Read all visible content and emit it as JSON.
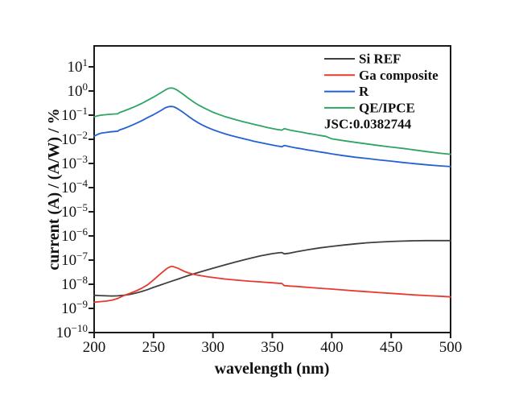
{
  "figure": {
    "background": "#ffffff",
    "frame_color": "#1a1a1a",
    "text_color": "#111111"
  },
  "chart_data": {
    "type": "line",
    "title": "",
    "xlabel": "wavelength (nm)",
    "ylabel": "current (A) / (A/W) / %",
    "x_scale": "linear",
    "y_scale": "log",
    "xlim": [
      200,
      500
    ],
    "ylim": [
      1e-10,
      73.6
    ],
    "x_ticks": [
      200,
      250,
      300,
      350,
      400,
      450,
      500
    ],
    "y_tick_exponents": [
      1,
      0,
      -1,
      -2,
      -3,
      -4,
      -5,
      -6,
      -7,
      -8,
      -9,
      -10
    ],
    "grid": false,
    "legend_position": "inside-top-right",
    "annotation": "JSC:0.0382744",
    "series": [
      {
        "name": "Si REF",
        "color": "#3f3f3f",
        "points": [
          [
            200,
            3.5e-09
          ],
          [
            205,
            3.4e-09
          ],
          [
            210,
            3.3e-09
          ],
          [
            215,
            3.25e-09
          ],
          [
            220,
            3.3e-09
          ],
          [
            225,
            3.5e-09
          ],
          [
            230,
            3.8e-09
          ],
          [
            235,
            4.3e-09
          ],
          [
            240,
            5e-09
          ],
          [
            245,
            6e-09
          ],
          [
            250,
            7.4e-09
          ],
          [
            255,
            9e-09
          ],
          [
            260,
            1.1e-08
          ],
          [
            265,
            1.33e-08
          ],
          [
            270,
            1.6e-08
          ],
          [
            275,
            1.95e-08
          ],
          [
            280,
            2.35e-08
          ],
          [
            285,
            2.8e-08
          ],
          [
            290,
            3.3e-08
          ],
          [
            295,
            3.9e-08
          ],
          [
            300,
            4.6e-08
          ],
          [
            310,
            6.3e-08
          ],
          [
            320,
            8.6e-08
          ],
          [
            330,
            1.15e-07
          ],
          [
            340,
            1.5e-07
          ],
          [
            350,
            1.85e-07
          ],
          [
            355,
            2e-07
          ],
          [
            358,
            2.05e-07
          ],
          [
            360,
            1.8e-07
          ],
          [
            365,
            1.95e-07
          ],
          [
            370,
            2.2e-07
          ],
          [
            380,
            2.7e-07
          ],
          [
            390,
            3.2e-07
          ],
          [
            400,
            3.7e-07
          ],
          [
            410,
            4.2e-07
          ],
          [
            420,
            4.7e-07
          ],
          [
            430,
            5.2e-07
          ],
          [
            440,
            5.6e-07
          ],
          [
            450,
            5.9e-07
          ],
          [
            460,
            6.1e-07
          ],
          [
            470,
            6.3e-07
          ],
          [
            480,
            6.4e-07
          ],
          [
            490,
            6.4e-07
          ],
          [
            500,
            6.4e-07
          ]
        ]
      },
      {
        "name": " Ga composite",
        "color": "#e63a2e",
        "points": [
          [
            200,
            1.8e-09
          ],
          [
            205,
            1.9e-09
          ],
          [
            210,
            2e-09
          ],
          [
            215,
            2.2e-09
          ],
          [
            220,
            2.6e-09
          ],
          [
            225,
            3.4e-09
          ],
          [
            230,
            4.2e-09
          ],
          [
            235,
            5.2e-09
          ],
          [
            240,
            6.8e-09
          ],
          [
            245,
            9.5e-09
          ],
          [
            250,
            1.5e-08
          ],
          [
            255,
            2.5e-08
          ],
          [
            258,
            3.3e-08
          ],
          [
            261,
            4.4e-08
          ],
          [
            263,
            5e-08
          ],
          [
            265,
            5.5e-08
          ],
          [
            267,
            5.3e-08
          ],
          [
            270,
            4.7e-08
          ],
          [
            273,
            4e-08
          ],
          [
            276,
            3.4e-08
          ],
          [
            280,
            2.9e-08
          ],
          [
            285,
            2.5e-08
          ],
          [
            290,
            2.25e-08
          ],
          [
            295,
            2.05e-08
          ],
          [
            300,
            1.9e-08
          ],
          [
            310,
            1.65e-08
          ],
          [
            320,
            1.48e-08
          ],
          [
            330,
            1.35e-08
          ],
          [
            340,
            1.25e-08
          ],
          [
            350,
            1.15e-08
          ],
          [
            355,
            1.1e-08
          ],
          [
            358,
            1.08e-08
          ],
          [
            360,
            8.8e-09
          ],
          [
            365,
            8.4e-09
          ],
          [
            370,
            8.1e-09
          ],
          [
            380,
            7.4e-09
          ],
          [
            390,
            6.8e-09
          ],
          [
            400,
            6.3e-09
          ],
          [
            410,
            5.8e-09
          ],
          [
            420,
            5.3e-09
          ],
          [
            430,
            4.9e-09
          ],
          [
            440,
            4.5e-09
          ],
          [
            450,
            4.2e-09
          ],
          [
            460,
            3.9e-09
          ],
          [
            470,
            3.6e-09
          ],
          [
            480,
            3.4e-09
          ],
          [
            490,
            3.2e-09
          ],
          [
            500,
            3e-09
          ]
        ]
      },
      {
        "name": "R",
        "color": "#2361d2",
        "points": [
          [
            200,
            0.0135
          ],
          [
            203,
            0.016
          ],
          [
            206,
            0.018
          ],
          [
            210,
            0.0192
          ],
          [
            214,
            0.0205
          ],
          [
            218,
            0.0213
          ],
          [
            220,
            0.0218
          ],
          [
            221,
            0.024
          ],
          [
            225,
            0.028
          ],
          [
            230,
            0.035
          ],
          [
            235,
            0.045
          ],
          [
            240,
            0.059
          ],
          [
            245,
            0.079
          ],
          [
            250,
            0.105
          ],
          [
            254,
            0.135
          ],
          [
            257,
            0.165
          ],
          [
            259,
            0.19
          ],
          [
            261,
            0.212
          ],
          [
            263,
            0.226
          ],
          [
            265,
            0.23
          ],
          [
            267,
            0.222
          ],
          [
            269,
            0.2
          ],
          [
            271,
            0.175
          ],
          [
            274,
            0.14
          ],
          [
            277,
            0.11
          ],
          [
            280,
            0.085
          ],
          [
            284,
            0.062
          ],
          [
            288,
            0.047
          ],
          [
            292,
            0.037
          ],
          [
            296,
            0.03
          ],
          [
            300,
            0.025
          ],
          [
            305,
            0.0205
          ],
          [
            310,
            0.017
          ],
          [
            315,
            0.0145
          ],
          [
            320,
            0.0125
          ],
          [
            325,
            0.0108
          ],
          [
            330,
            0.0094
          ],
          [
            335,
            0.0082
          ],
          [
            340,
            0.0073
          ],
          [
            345,
            0.0065
          ],
          [
            350,
            0.0058
          ],
          [
            354,
            0.0053
          ],
          [
            358,
            0.0049
          ],
          [
            360,
            0.0056
          ],
          [
            365,
            0.0049
          ],
          [
            370,
            0.0044
          ],
          [
            375,
            0.004
          ],
          [
            380,
            0.0036
          ],
          [
            385,
            0.0033
          ],
          [
            390,
            0.003
          ],
          [
            395,
            0.00275
          ],
          [
            400,
            0.0025
          ],
          [
            410,
            0.0021
          ],
          [
            420,
            0.0018
          ],
          [
            430,
            0.0016
          ],
          [
            440,
            0.0014
          ],
          [
            450,
            0.00125
          ],
          [
            460,
            0.0011
          ],
          [
            470,
            0.00098
          ],
          [
            480,
            0.00088
          ],
          [
            490,
            0.0008
          ],
          [
            500,
            0.00074
          ]
        ]
      },
      {
        "name": "QE/IPCE",
        "color": "#2fa463",
        "points": [
          [
            200,
            0.085
          ],
          [
            203,
            0.094
          ],
          [
            206,
            0.1
          ],
          [
            210,
            0.105
          ],
          [
            214,
            0.109
          ],
          [
            218,
            0.112
          ],
          [
            220,
            0.114
          ],
          [
            221,
            0.126
          ],
          [
            225,
            0.148
          ],
          [
            230,
            0.185
          ],
          [
            235,
            0.235
          ],
          [
            240,
            0.305
          ],
          [
            245,
            0.41
          ],
          [
            250,
            0.56
          ],
          [
            254,
            0.73
          ],
          [
            257,
            0.9
          ],
          [
            259,
            1.03
          ],
          [
            261,
            1.18
          ],
          [
            263,
            1.3
          ],
          [
            265,
            1.34
          ],
          [
            267,
            1.28
          ],
          [
            269,
            1.15
          ],
          [
            271,
            1.0
          ],
          [
            274,
            0.79
          ],
          [
            277,
            0.61
          ],
          [
            280,
            0.47
          ],
          [
            284,
            0.345
          ],
          [
            288,
            0.26
          ],
          [
            292,
            0.205
          ],
          [
            296,
            0.163
          ],
          [
            300,
            0.132
          ],
          [
            305,
            0.106
          ],
          [
            310,
            0.088
          ],
          [
            315,
            0.074
          ],
          [
            320,
            0.063
          ],
          [
            325,
            0.054
          ],
          [
            330,
            0.047
          ],
          [
            335,
            0.041
          ],
          [
            340,
            0.036
          ],
          [
            345,
            0.0315
          ],
          [
            350,
            0.028
          ],
          [
            354,
            0.0255
          ],
          [
            358,
            0.024
          ],
          [
            360,
            0.0275
          ],
          [
            365,
            0.024
          ],
          [
            370,
            0.0215
          ],
          [
            375,
            0.0195
          ],
          [
            380,
            0.0175
          ],
          [
            385,
            0.016
          ],
          [
            390,
            0.0145
          ],
          [
            395,
            0.0133
          ],
          [
            400,
            0.0105
          ],
          [
            410,
            0.0088
          ],
          [
            420,
            0.0075
          ],
          [
            430,
            0.0064
          ],
          [
            440,
            0.0055
          ],
          [
            450,
            0.0048
          ],
          [
            460,
            0.0042
          ],
          [
            470,
            0.0036
          ],
          [
            480,
            0.0031
          ],
          [
            490,
            0.0027
          ],
          [
            500,
            0.0024
          ]
        ]
      }
    ]
  }
}
